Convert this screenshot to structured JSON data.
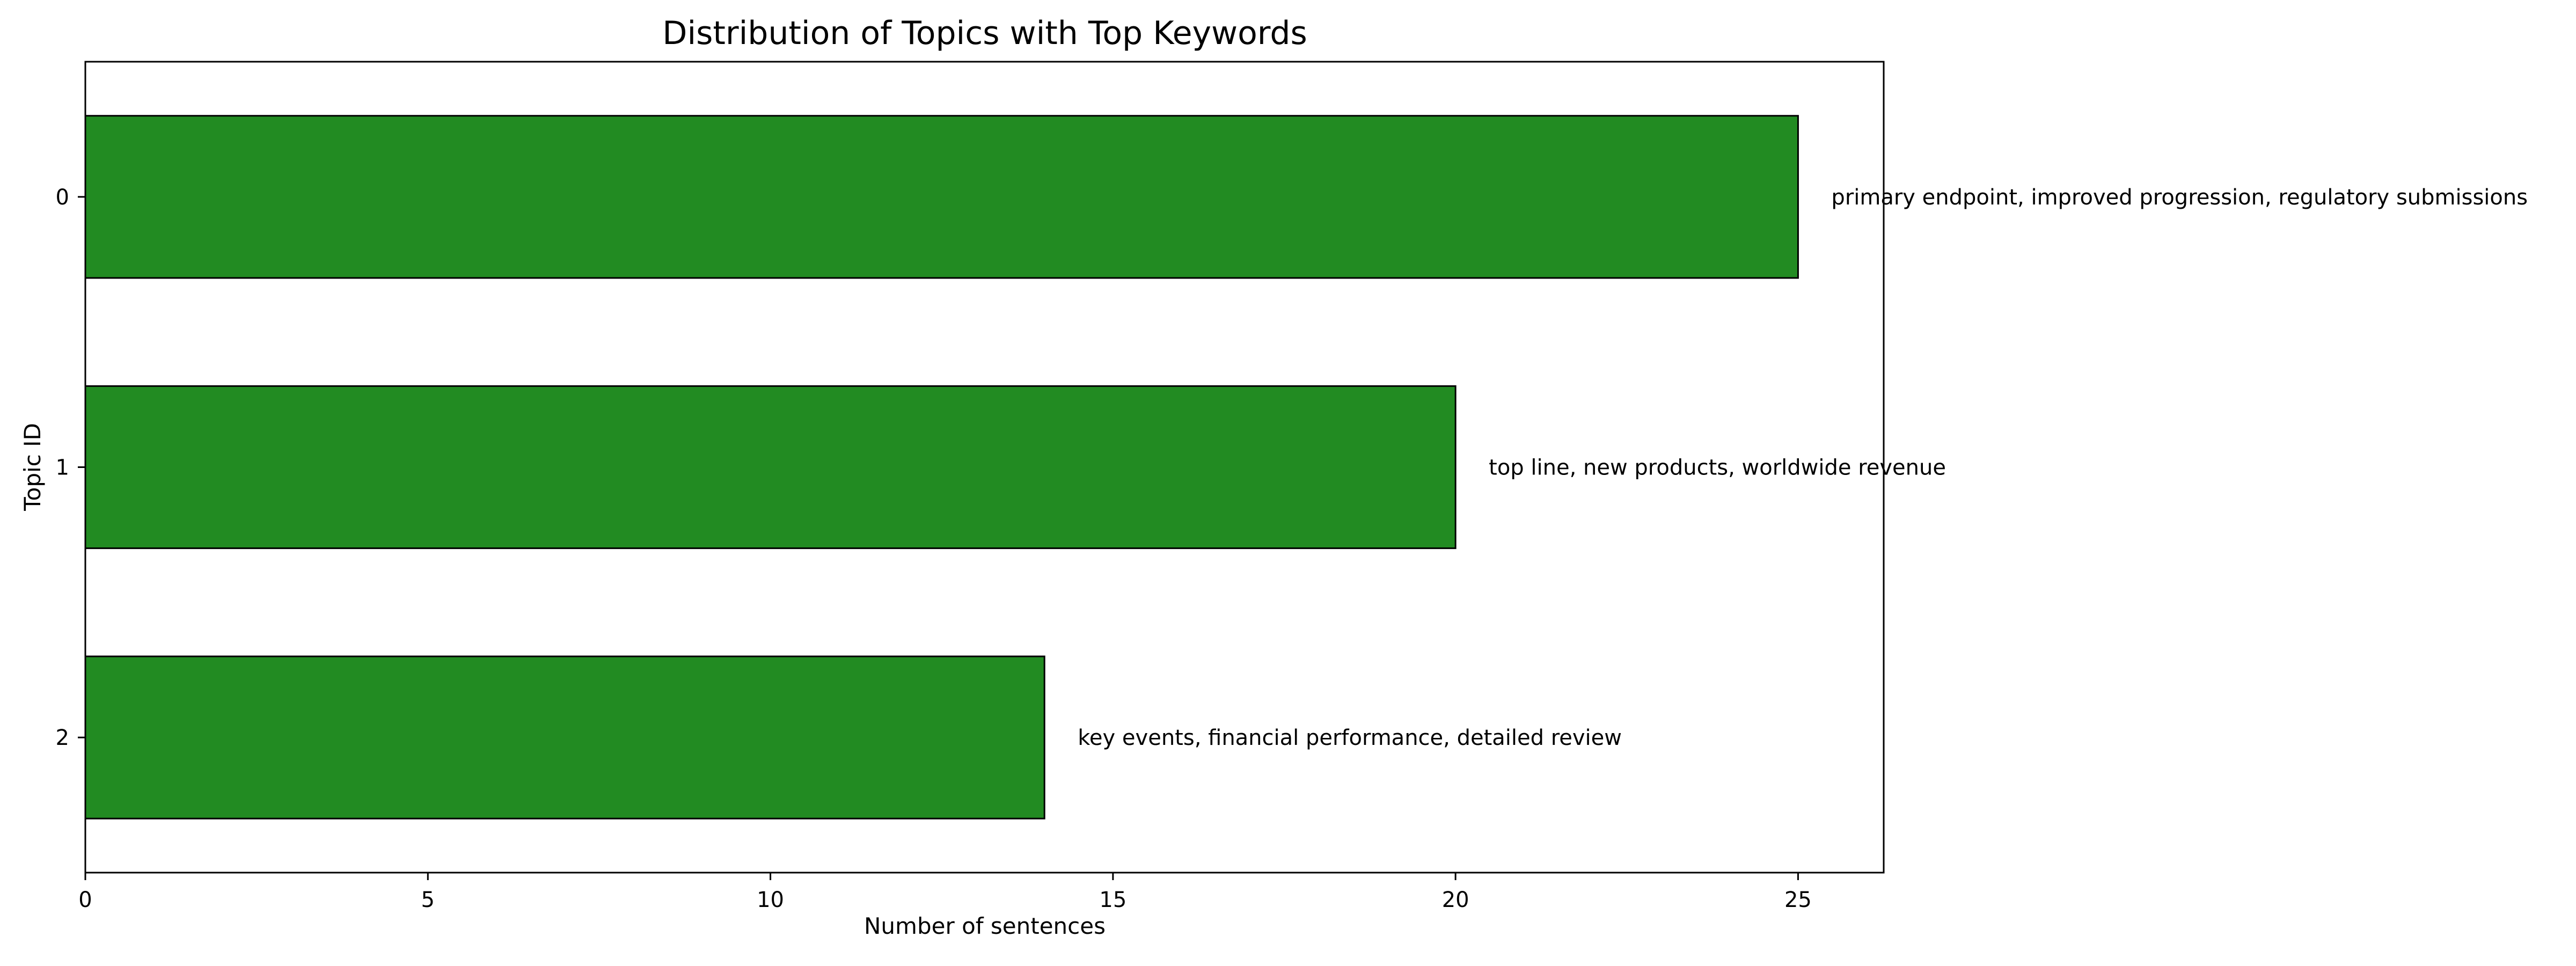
{
  "chart_data": {
    "type": "bar",
    "orientation": "horizontal",
    "title": "Distribution of Topics with Top Keywords",
    "xlabel": "Number of sentences",
    "ylabel": "Topic ID",
    "categories": [
      "0",
      "1",
      "2"
    ],
    "values": [
      25,
      20,
      14
    ],
    "bar_labels": [
      "primary endpoint, improved progression, regulatory submissions",
      "top line, new products, worldwide revenue",
      "key events, financial performance, detailed review"
    ],
    "xlim": [
      0,
      26.25
    ],
    "xticks": [
      0,
      5,
      10,
      15,
      20,
      25
    ],
    "grid": false,
    "legend": "none",
    "colors": {
      "bar_fill": "#228b22",
      "bar_edge": "#000000",
      "axis": "#000000",
      "background": "#ffffff"
    }
  }
}
